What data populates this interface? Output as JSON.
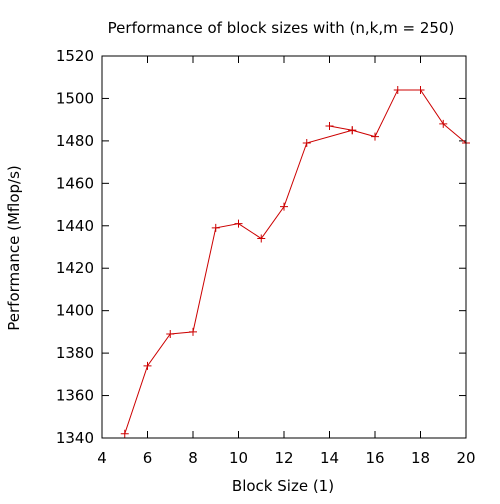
{
  "chart_data": {
    "type": "line",
    "title": "Performance of block sizes with (n,k,m = 250)",
    "xlabel": "Block Size (1)",
    "ylabel": "Performance (Mflop/s)",
    "xlim": [
      4,
      20
    ],
    "ylim": [
      1340,
      1520
    ],
    "xticks": [
      4,
      6,
      8,
      10,
      12,
      14,
      16,
      18,
      20
    ],
    "yticks": [
      1340,
      1360,
      1380,
      1400,
      1420,
      1440,
      1460,
      1480,
      1500,
      1520
    ],
    "grid": false,
    "legend": "none",
    "series": [
      {
        "color": "#cc0000",
        "marker": "plus",
        "points": [
          {
            "x": 5,
            "y": 1342
          },
          {
            "x": 6,
            "y": 1374
          },
          {
            "x": 7,
            "y": 1389
          },
          {
            "x": 8,
            "y": 1390
          },
          {
            "x": 9,
            "y": 1439
          },
          {
            "x": 10,
            "y": 1441
          },
          {
            "x": 11,
            "y": 1434
          },
          {
            "x": 12,
            "y": 1449
          },
          {
            "x": 13,
            "y": 1479
          },
          {
            "x": 15,
            "y": 1485
          },
          {
            "x": 14,
            "y": 1487
          },
          {
            "x": 15,
            "y": 1485
          },
          {
            "x": 16,
            "y": 1482
          },
          {
            "x": 17,
            "y": 1504
          },
          {
            "x": 18,
            "y": 1504
          },
          {
            "x": 19,
            "y": 1488
          },
          {
            "x": 20,
            "y": 1479
          }
        ]
      }
    ]
  }
}
